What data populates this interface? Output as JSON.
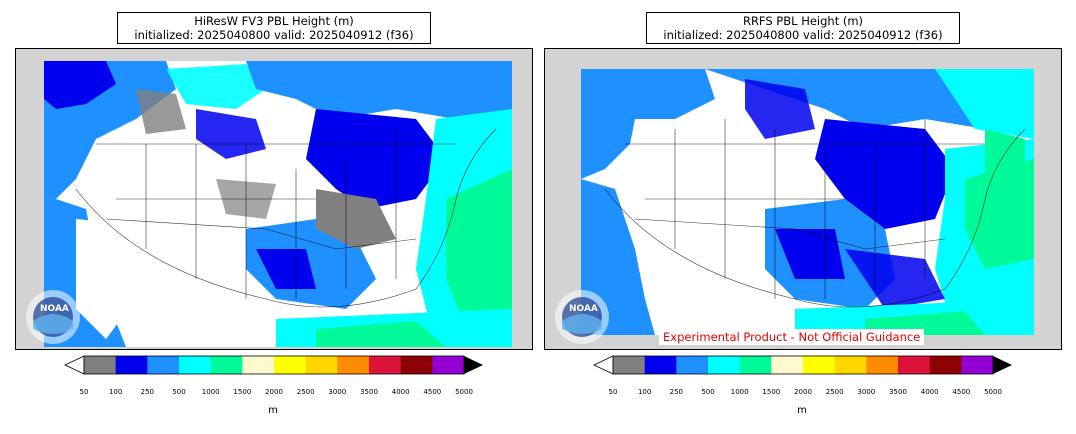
{
  "panels": [
    {
      "title_line1": "HiResW FV3 PBL Height (m)",
      "title_line2": "initialized: 2025040800 valid: 2025040912 (f36)",
      "logo_text": "NOAA",
      "warning": ""
    },
    {
      "title_line1": "RRFS PBL Height (m)",
      "title_line2": "initialized: 2025040800 valid: 2025040912 (f36)",
      "logo_text": "NOAA",
      "warning": "Experimental Product - Not Official Guidance"
    }
  ],
  "colorbar": {
    "unit": "m",
    "ticks": [
      "50",
      "100",
      "250",
      "500",
      "1000",
      "1500",
      "2000",
      "2500",
      "3000",
      "3500",
      "4000",
      "4500",
      "5000"
    ],
    "colors": [
      "#808080",
      "#0000ee",
      "#1e90ff",
      "#00ffff",
      "#00fa9a",
      "#fffacd",
      "#ffff00",
      "#ffd700",
      "#ff8c00",
      "#dc143c",
      "#8b0000",
      "#9400d3"
    ],
    "under_color": "#ffffff",
    "over_color": "#000000"
  }
}
